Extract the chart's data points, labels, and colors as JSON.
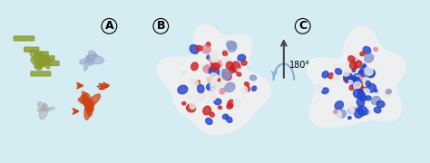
{
  "background_color": "#d6ecf3",
  "panel_labels": [
    "A",
    "B",
    "C"
  ],
  "panel_label_fontsize": 9,
  "panel_label_circle": true,
  "rotation_text": "180°",
  "rotation_fontsize": 7,
  "fig_width": 4.74,
  "fig_height": 1.8,
  "panel_A": {
    "colors": {
      "top_left": "#8b9a2a",
      "top_right": "#99aacc",
      "bottom_right": "#cc4411",
      "bottom_left": "#aaaaaa"
    }
  },
  "panel_B": {
    "colors": [
      "#cc2222",
      "#2244cc",
      "#ffffff",
      "#ff9999",
      "#9999ff"
    ]
  },
  "panel_C": {
    "colors": [
      "#cc2222",
      "#2244cc",
      "#ffffff",
      "#ff9999",
      "#9999ff"
    ]
  },
  "arrow_color": "#444444",
  "arrow_curve_color": "#88aacc"
}
